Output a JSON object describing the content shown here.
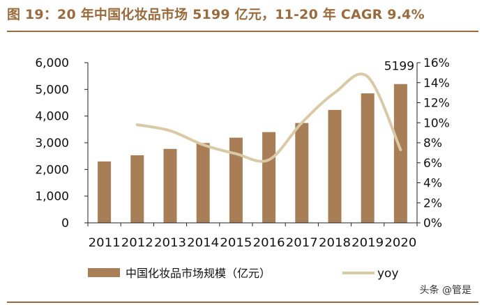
{
  "title": "图 19：20 年中国化妆品市场 5199 亿元，11-20 年 CAGR 9.4%",
  "watermark": "头条 @管是",
  "colors": {
    "bar": "#a77e55",
    "line": "#d9c9a5",
    "title": "#9b6a3a",
    "axis": "#222222"
  },
  "chart_data": {
    "type": "bar",
    "categories": [
      "2011",
      "2012",
      "2013",
      "2014",
      "2015",
      "2016",
      "2017",
      "2018",
      "2019",
      "2020"
    ],
    "series": [
      {
        "name": "中国化妆品市场规模（亿元）",
        "type": "bar",
        "axis": "left",
        "values": [
          2300,
          2530,
          2770,
          2990,
          3190,
          3400,
          3740,
          4230,
          4850,
          5199
        ]
      },
      {
        "name": "yoy",
        "type": "line",
        "axis": "right",
        "smooth": true,
        "values": [
          null,
          9.8,
          9.2,
          7.8,
          6.9,
          6.3,
          10.0,
          13.0,
          14.6,
          7.3
        ]
      }
    ],
    "y_left": {
      "ylim": [
        0,
        6000
      ],
      "ticks": [
        "0",
        "1,000",
        "2,000",
        "3,000",
        "4,000",
        "5,000",
        "6,000"
      ]
    },
    "y_right": {
      "ylim": [
        0,
        16
      ],
      "ticks": [
        "0%",
        "2%",
        "4%",
        "6%",
        "8%",
        "10%",
        "12%",
        "14%",
        "16%"
      ]
    },
    "annotations": [
      {
        "category": "2020",
        "text": "5199"
      }
    ],
    "legend": {
      "placement": "bottom",
      "items": [
        "中国化妆品市场规模（亿元）",
        "yoy"
      ]
    },
    "grid": false
  }
}
